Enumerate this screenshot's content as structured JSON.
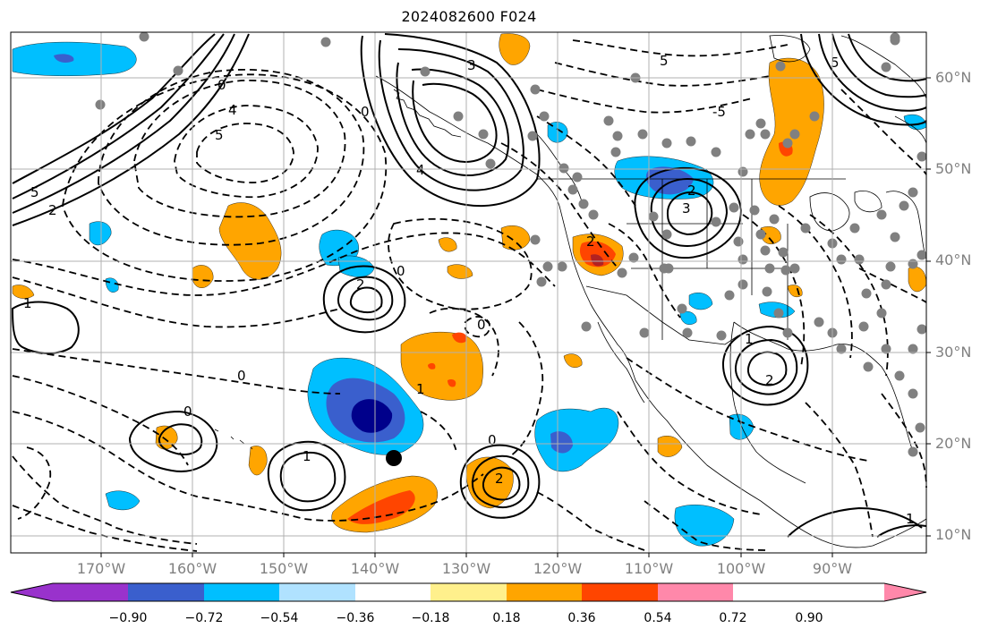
{
  "title": "2024082600 F024",
  "lat_labels": [
    "60°N",
    "50°N",
    "40°N",
    "30°N",
    "20°N",
    "10°N"
  ],
  "lon_labels": [
    "170°W",
    "160°W",
    "150°W",
    "140°W",
    "130°W",
    "120°W",
    "110°W",
    "100°W",
    "90°W"
  ],
  "colorbar": {
    "tick_labels": [
      "−0.90",
      "−0.72",
      "−0.54",
      "−0.36",
      "−0.18",
      "0.18",
      "0.36",
      "0.54",
      "0.72",
      "0.90"
    ],
    "colors": [
      "#9932cc",
      "#00008b",
      "#3a5fcd",
      "#00bfff",
      "#b0e2ff",
      "#ffffff",
      "#fff08c",
      "#ffa500",
      "#ff4500",
      "#b22222",
      "#ff88aa"
    ]
  },
  "contour_labels": [
    "0",
    "0",
    "0",
    "0",
    "0",
    "0",
    "0",
    "1",
    "1",
    "1",
    "1",
    "2",
    "2",
    "2",
    "2",
    "2",
    "3",
    "3",
    "4",
    "4",
    "5",
    "5",
    "5",
    "5",
    "-5",
    "1",
    "2"
  ],
  "colors": {
    "orange": "#ffa500",
    "red_orange": "#ff4500",
    "deep_sky_blue": "#00bfff",
    "royal_blue": "#3a5fcd",
    "navy": "#00008b",
    "station_gray": "#808080"
  }
}
